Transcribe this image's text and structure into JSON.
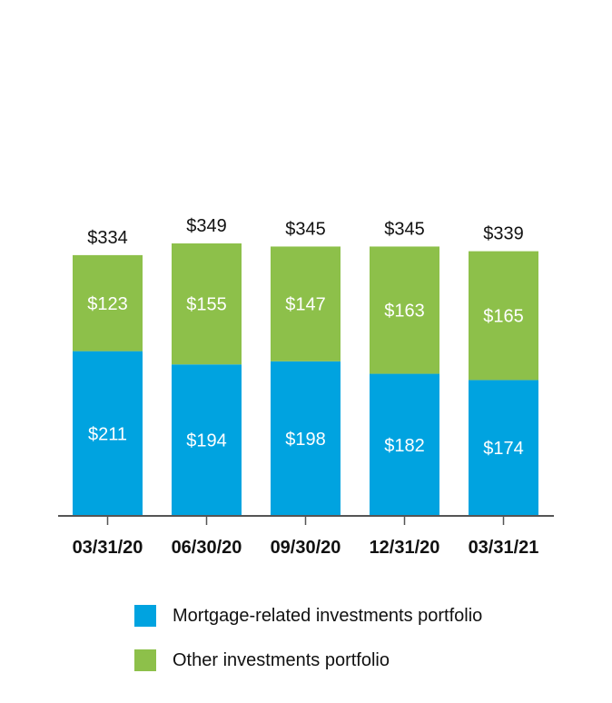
{
  "chart_data": {
    "type": "bar",
    "stacked": true,
    "categories": [
      "03/31/20",
      "06/30/20",
      "09/30/20",
      "12/31/20",
      "03/31/21"
    ],
    "series": [
      {
        "name": "Mortgage-related investments portfolio",
        "values": [
          211,
          194,
          198,
          182,
          174
        ],
        "labels": [
          "$211",
          "$194",
          "$198",
          "$182",
          "$174"
        ],
        "color": "#00a3e0"
      },
      {
        "name": "Other investments portfolio",
        "values": [
          123,
          155,
          147,
          163,
          165
        ],
        "labels": [
          "$123",
          "$155",
          "$147",
          "$163",
          "$165"
        ],
        "color": "#8dc04a"
      }
    ],
    "totals": [
      334,
      349,
      345,
      345,
      339
    ],
    "total_labels": [
      "$334",
      "$349",
      "$345",
      "$345",
      "$339"
    ],
    "ylim": [
      0,
      349
    ],
    "grid": false,
    "legend_position": "bottom"
  }
}
